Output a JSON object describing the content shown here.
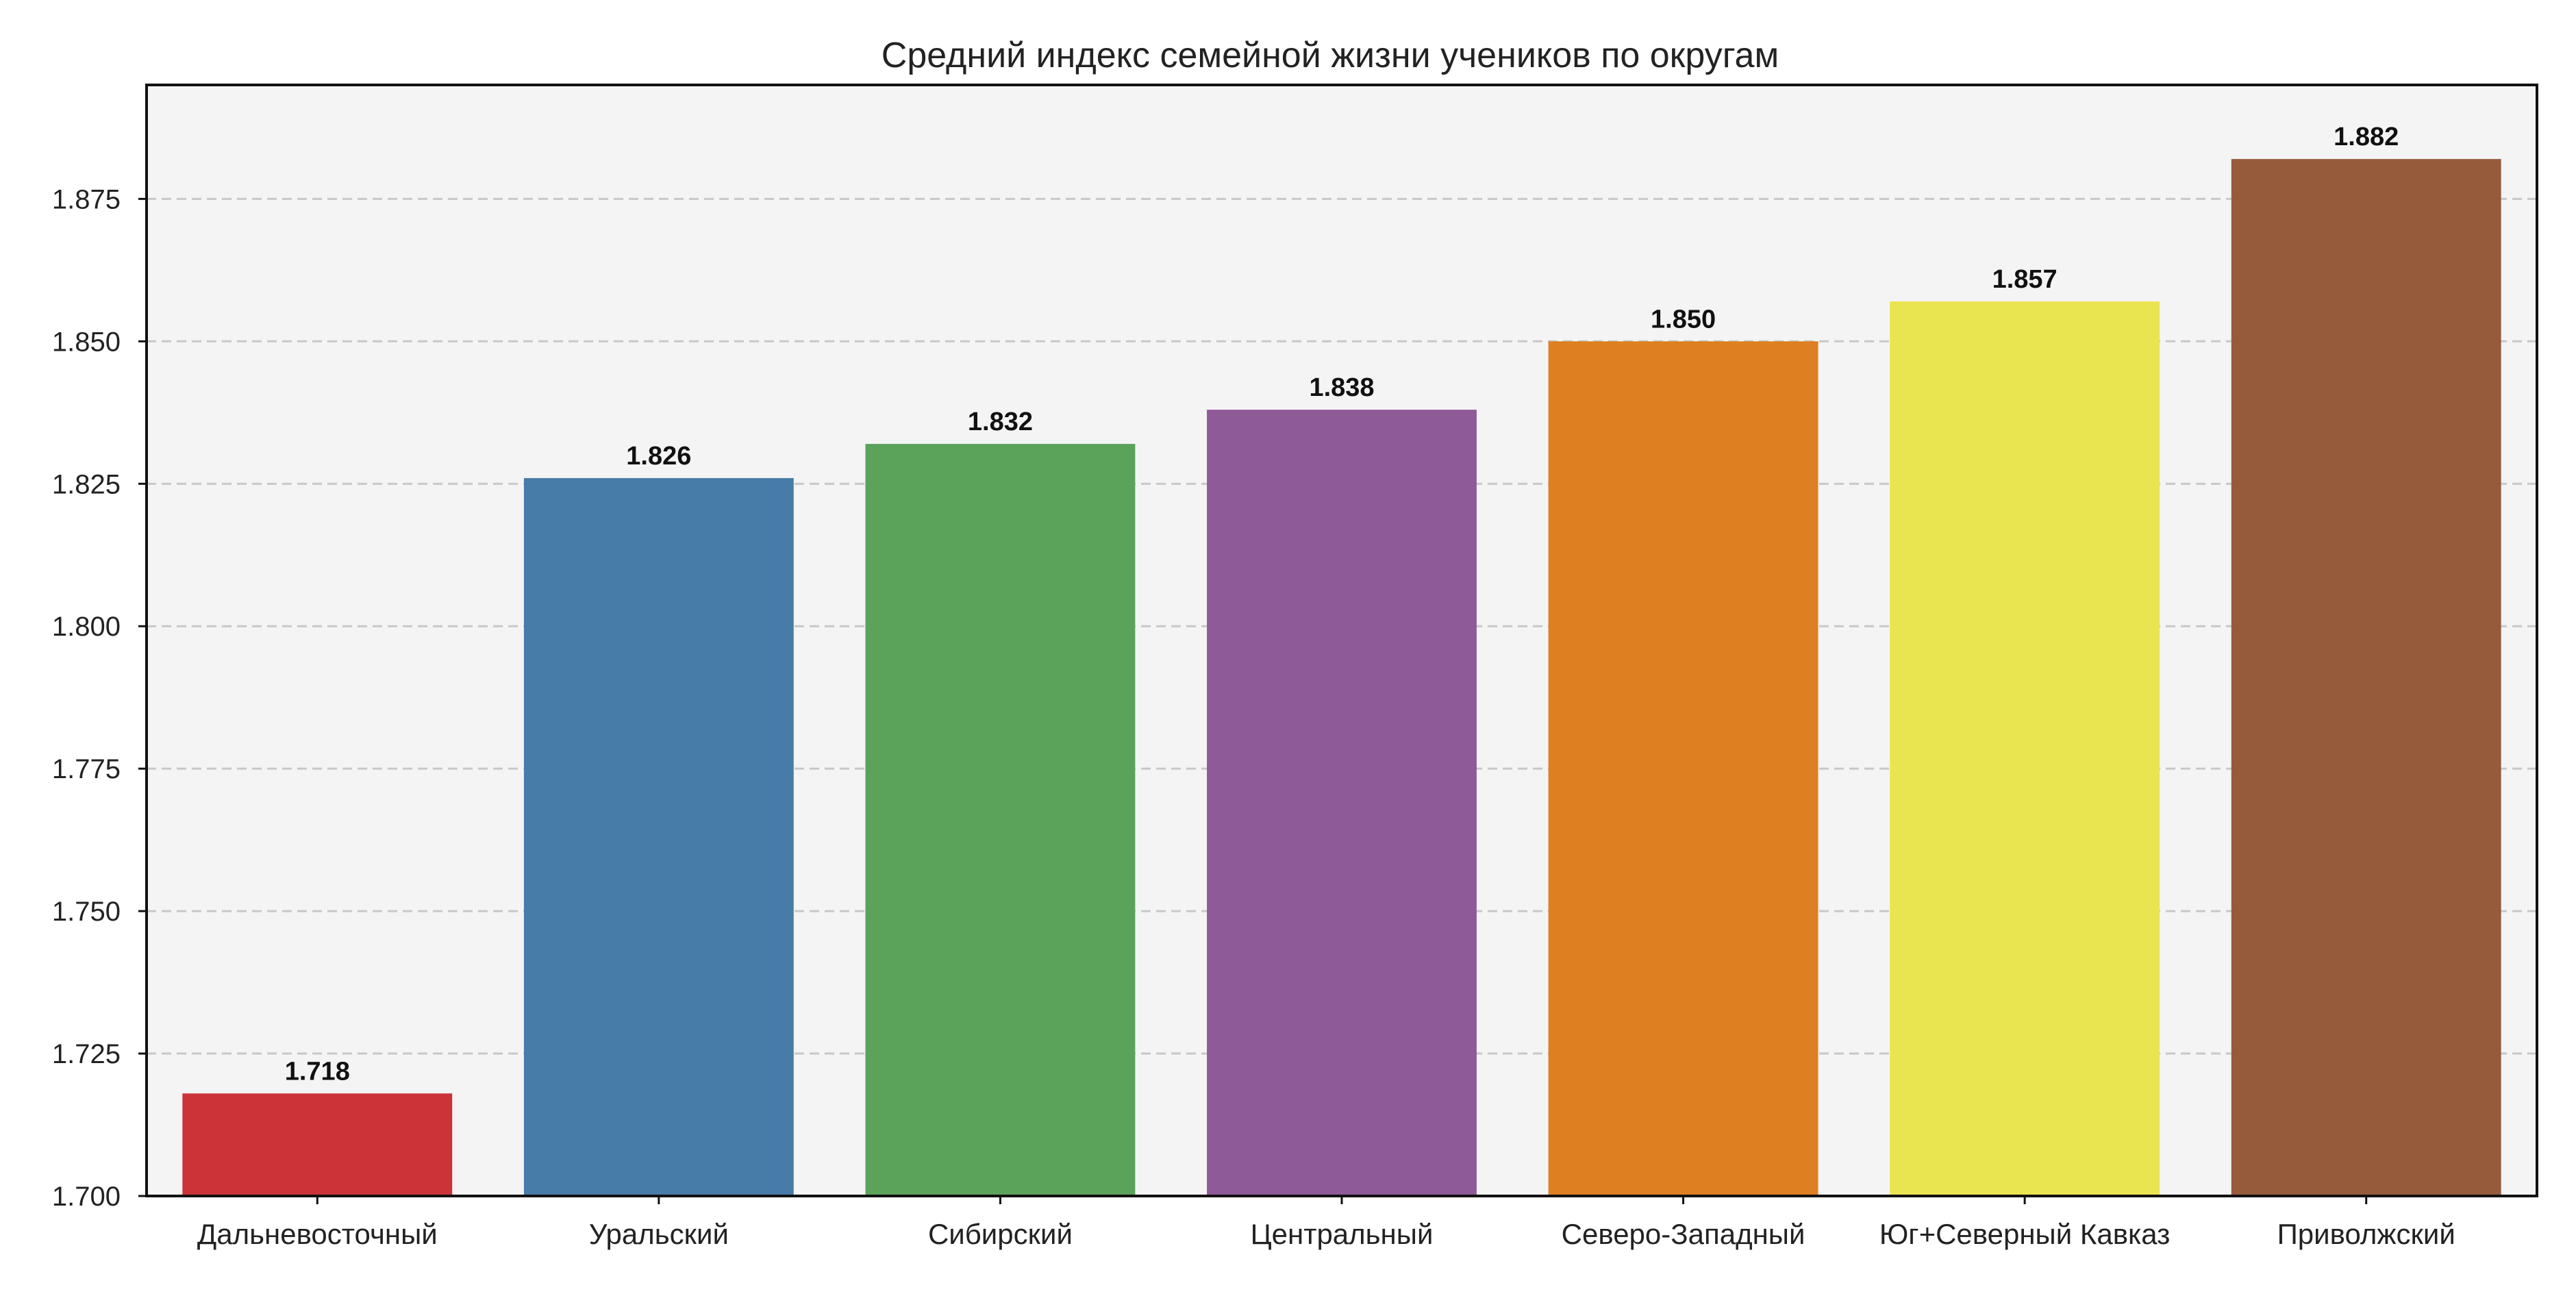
{
  "chart_data": {
    "type": "bar",
    "title": "Средний индекс семейной жизни учеников по округам",
    "xlabel": "",
    "ylabel": "",
    "categories": [
      "Дальневосточный",
      "Уральский",
      "Сибирский",
      "Центральный",
      "Северо-Западный",
      "Юг+Северный Кавказ",
      "Приволжский"
    ],
    "values": [
      1.718,
      1.826,
      1.832,
      1.838,
      1.85,
      1.857,
      1.882
    ],
    "value_labels": [
      "1.718",
      "1.826",
      "1.832",
      "1.838",
      "1.850",
      "1.857",
      "1.882"
    ],
    "colors": [
      "#cc3338",
      "#487ca8",
      "#5ba35b",
      "#8f5a98",
      "#de7f22",
      "#e8e550",
      "#965b3b"
    ],
    "ylim": [
      1.7,
      1.895
    ],
    "yticks": [
      1.7,
      1.725,
      1.75,
      1.775,
      1.8,
      1.825,
      1.85,
      1.875
    ],
    "ytick_labels": [
      "1.700",
      "1.725",
      "1.750",
      "1.775",
      "1.800",
      "1.825",
      "1.850",
      "1.875"
    ],
    "grid": "horizontal-dashed",
    "legend": "none",
    "background_color": "#f4f4f4"
  }
}
